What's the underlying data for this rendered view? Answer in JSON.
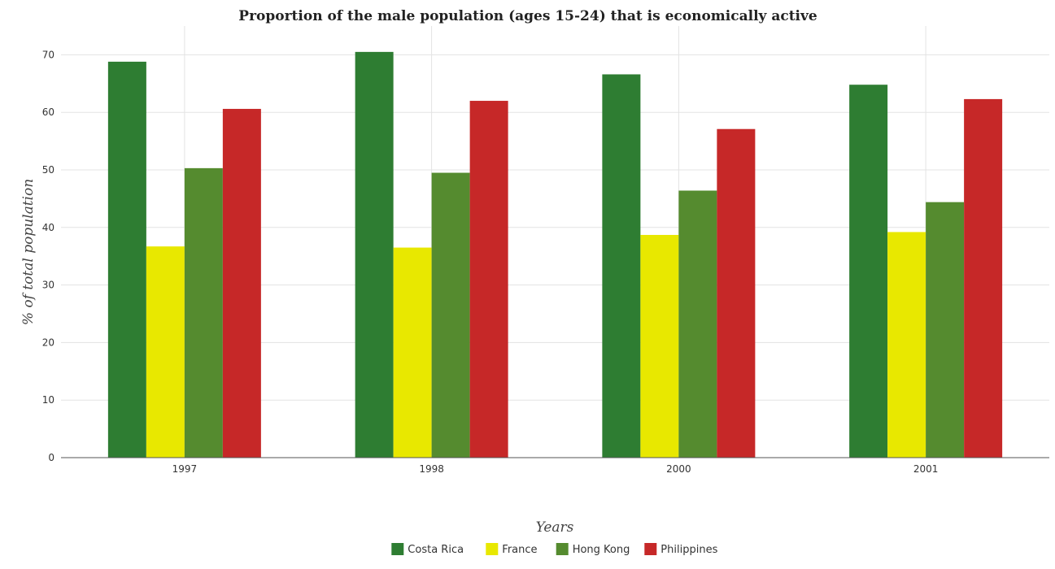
{
  "chart_data": {
    "type": "bar",
    "title": "Proportion of the male population (ages 15-24) that is economically active",
    "xlabel": "Years",
    "ylabel": "% of total population",
    "categories": [
      "1997",
      "1998",
      "2000",
      "2001"
    ],
    "ylim": [
      0,
      75
    ],
    "yticks": [
      0,
      10,
      20,
      30,
      40,
      50,
      60,
      70
    ],
    "grid": true,
    "legend_position": "bottom-center",
    "series": [
      {
        "name": "Costa Rica",
        "color": "#2e7d32",
        "values": [
          68.8,
          70.5,
          66.6,
          64.8
        ]
      },
      {
        "name": "France",
        "color": "#e8e800",
        "values": [
          36.7,
          36.5,
          38.7,
          39.2
        ]
      },
      {
        "name": "Hong Kong",
        "color": "#558b2f",
        "values": [
          50.3,
          49.5,
          46.4,
          44.4
        ]
      },
      {
        "name": "Philippines",
        "color": "#c62828",
        "values": [
          60.6,
          62.0,
          57.1,
          62.3
        ]
      }
    ]
  }
}
